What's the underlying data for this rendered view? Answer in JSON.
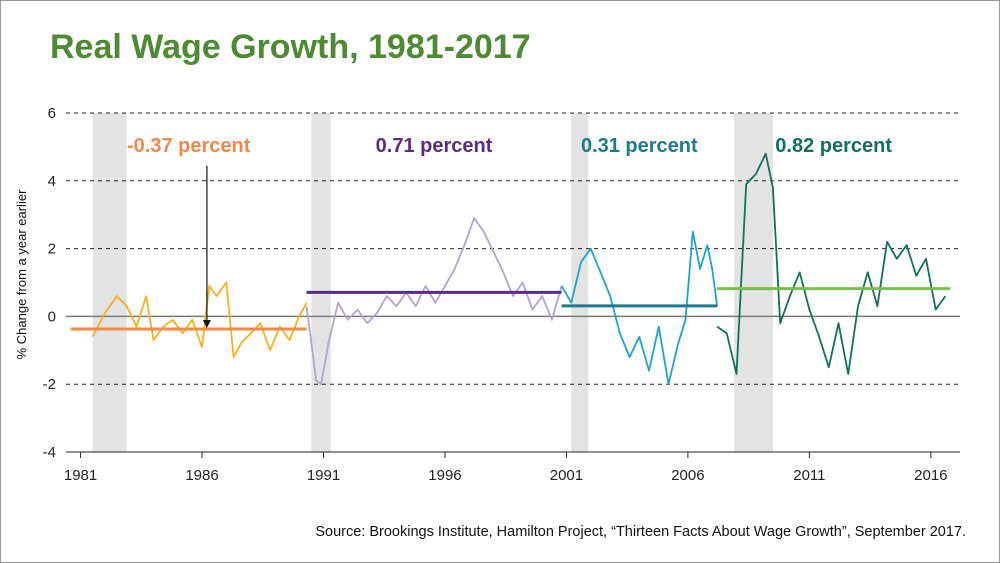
{
  "slide": {
    "title": "Real Wage Growth, 1981-2017",
    "source": "Source: Brookings Institute, Hamilton Project, “Thirteen Facts About Wage Growth”, September 2017."
  },
  "chart_data": {
    "type": "line",
    "ylabel": "% Change from a year earlier",
    "xlabel": "",
    "ylim": [
      -4,
      6
    ],
    "xlim": [
      1980.4,
      2017.2
    ],
    "yticks": [
      -4,
      -2,
      0,
      2,
      4,
      6
    ],
    "xticks": [
      1981,
      1986,
      1991,
      1996,
      2001,
      2006,
      2011,
      2016
    ],
    "grid": "horizontal dashed",
    "zero_line": true,
    "recessions": [
      [
        1981.5,
        1982.9
      ],
      [
        1990.5,
        1991.3
      ],
      [
        2001.2,
        2001.9
      ],
      [
        2007.9,
        2009.5
      ]
    ],
    "series": [
      {
        "color": "#f5b01e",
        "x": [
          1981.5,
          1982.0,
          1982.5,
          1982.9,
          1983.3,
          1983.7,
          1984.0,
          1984.4,
          1984.8,
          1985.2,
          1985.6,
          1986.0,
          1986.3,
          1986.6,
          1987.0,
          1987.3,
          1987.6,
          1988.0,
          1988.4,
          1988.8,
          1989.2,
          1989.6,
          1990.0,
          1990.3
        ],
        "y": [
          -0.6,
          0.1,
          0.6,
          0.3,
          -0.3,
          0.6,
          -0.7,
          -0.3,
          -0.1,
          -0.5,
          -0.1,
          -0.9,
          0.9,
          0.6,
          1.0,
          -1.2,
          -0.8,
          -0.5,
          -0.2,
          -1.0,
          -0.3,
          -0.7,
          0.0,
          0.4
        ]
      },
      {
        "color": "#b4a3cc",
        "x": [
          1990.3,
          1990.5,
          1990.7,
          1990.9,
          1991.2,
          1991.6,
          1992.0,
          1992.4,
          1992.8,
          1993.2,
          1993.6,
          1994.0,
          1994.4,
          1994.8,
          1995.2,
          1995.6,
          1996.0,
          1996.4,
          1996.8,
          1997.2,
          1997.6,
          1998.0,
          1998.4,
          1998.8,
          1999.2,
          1999.6,
          2000.0,
          2000.4,
          2000.8
        ],
        "y": [
          0.3,
          -0.8,
          -1.9,
          -2.0,
          -0.8,
          0.4,
          -0.1,
          0.2,
          -0.2,
          0.1,
          0.6,
          0.3,
          0.7,
          0.3,
          0.9,
          0.4,
          0.9,
          1.4,
          2.1,
          2.9,
          2.5,
          1.9,
          1.3,
          0.6,
          1.0,
          0.2,
          0.6,
          -0.1,
          0.9
        ]
      },
      {
        "color": "#20a4c6",
        "x": [
          2000.8,
          2001.2,
          2001.6,
          2002.0,
          2002.4,
          2002.8,
          2003.2,
          2003.6,
          2004.0,
          2004.4,
          2004.8,
          2005.2,
          2005.6,
          2005.9,
          2006.2,
          2006.5,
          2006.8,
          2007.0,
          2007.2
        ],
        "y": [
          0.9,
          0.4,
          1.6,
          2.0,
          1.3,
          0.6,
          -0.5,
          -1.2,
          -0.6,
          -1.6,
          -0.3,
          -2.0,
          -0.8,
          -0.1,
          2.5,
          1.4,
          2.1,
          1.4,
          0.3
        ]
      },
      {
        "color": "#12705e",
        "x": [
          2007.2,
          2007.6,
          2008.0,
          2008.4,
          2008.8,
          2009.2,
          2009.5,
          2009.8,
          2010.2,
          2010.6,
          2011.0,
          2011.4,
          2011.8,
          2012.2,
          2012.6,
          2013.0,
          2013.4,
          2013.8,
          2014.2,
          2014.6,
          2015.0,
          2015.4,
          2015.8,
          2016.2,
          2016.6
        ],
        "y": [
          -0.3,
          -0.5,
          -1.7,
          3.9,
          4.2,
          4.8,
          3.8,
          -0.2,
          0.6,
          1.3,
          0.2,
          -0.6,
          -1.5,
          -0.2,
          -1.7,
          0.3,
          1.3,
          0.3,
          2.2,
          1.7,
          2.1,
          1.2,
          1.7,
          0.2,
          0.6
        ]
      }
    ],
    "averages": [
      {
        "label": "-0.37 percent",
        "value": -0.37,
        "x_start": 1980.6,
        "x_end": 1990.3,
        "line_color": "#f08a4b",
        "label_color": "#f08a4b"
      },
      {
        "label": "0.71 percent",
        "value": 0.71,
        "x_start": 1990.3,
        "x_end": 2000.8,
        "line_color": "#5b2c83",
        "label_color": "#5b2c83"
      },
      {
        "label": "0.31 percent",
        "value": 0.31,
        "x_start": 2000.8,
        "x_end": 2007.2,
        "line_color": "#1f7a8a",
        "label_color": "#1f7a8a"
      },
      {
        "label": "0.82 percent",
        "value": 0.82,
        "x_start": 2007.2,
        "x_end": 2016.8,
        "line_color": "#74c04f",
        "label_color": "#12705e"
      }
    ]
  }
}
